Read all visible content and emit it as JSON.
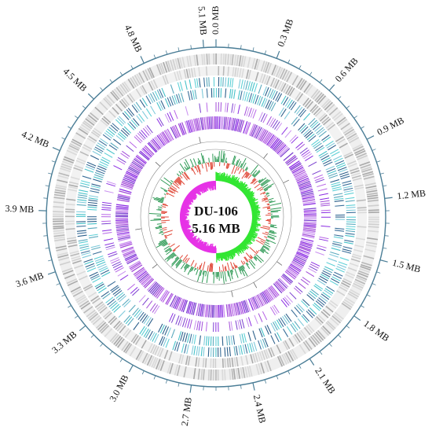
{
  "diagram": {
    "center_label": "DU-106",
    "center_size": "5.16 MB",
    "genome_length_mb": 5.16,
    "scale_labels": [
      {
        "value": 0.0,
        "text": "0.0 MB"
      },
      {
        "value": 0.3,
        "text": "0.3 MB"
      },
      {
        "value": 0.6,
        "text": "0.6 MB"
      },
      {
        "value": 0.9,
        "text": "0.9 MB"
      },
      {
        "value": 1.2,
        "text": "1.2 MB"
      },
      {
        "value": 1.5,
        "text": "1.5 MB"
      },
      {
        "value": 1.8,
        "text": "1.8 MB"
      },
      {
        "value": 2.1,
        "text": "2.1 MB"
      },
      {
        "value": 2.4,
        "text": "2.4 MB"
      },
      {
        "value": 2.7,
        "text": "2.7 MB"
      },
      {
        "value": 3.0,
        "text": "3.0 MB"
      },
      {
        "value": 3.3,
        "text": "3.3 MB"
      },
      {
        "value": 3.6,
        "text": "3.6 MB"
      },
      {
        "value": 3.9,
        "text": "3.9 MB"
      },
      {
        "value": 4.2,
        "text": "4.2 MB"
      },
      {
        "value": 4.5,
        "text": "4.5 MB"
      },
      {
        "value": 4.8,
        "text": "4.8 MB"
      },
      {
        "value": 5.1,
        "text": "5.1 MB"
      }
    ],
    "colors": {
      "scale_ring": "#4a7d96",
      "cds_grey": "#c4c4c4",
      "cog_blue": "#5aa9bd",
      "cog_dark": "#3b6f9a",
      "cog_teal": "#46c2c9",
      "rna_purple": "#a24dd8",
      "gc_positive": "#2e9a55",
      "gc_negative": "#e04a3a",
      "skew_positive": "#33e633",
      "skew_negative": "#e633e6",
      "ring_outline": "#888888"
    }
  }
}
